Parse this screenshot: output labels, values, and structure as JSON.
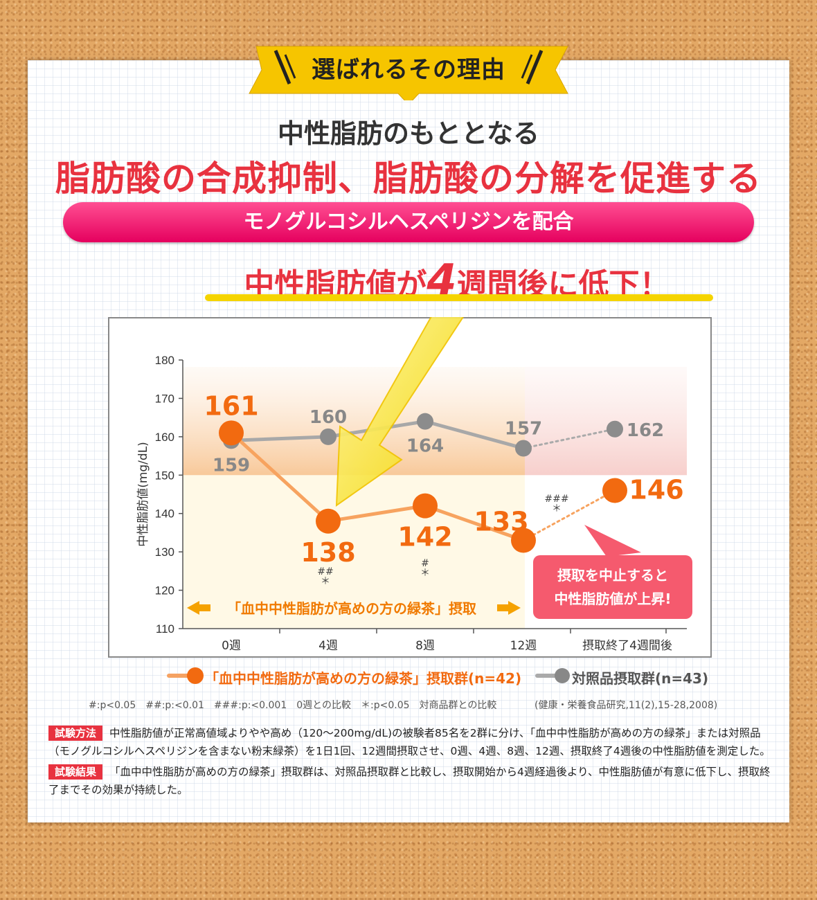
{
  "header": {
    "ribbon": "選ばれるその理由",
    "line1": "中性脂肪のもととなる",
    "line2": "脂肪酸の合成抑制、脂肪酸の分解を促進する",
    "pill": "モノグルコシルヘスペリジンを配合",
    "line3_pre": "中性脂肪値が",
    "line3_num": "4",
    "line3_post": "週間後に低下！"
  },
  "chart_data": {
    "type": "line",
    "ylabel": "中性脂肪値(mg/dL)",
    "ylim": [
      110,
      180
    ],
    "yticks": [
      110,
      120,
      130,
      140,
      150,
      160,
      170,
      180
    ],
    "categories": [
      "0週",
      "4週",
      "8週",
      "12週",
      "摂取終了4週間後"
    ],
    "series": [
      {
        "name": "「血中中性脂肪が高めの方の緑茶」摂取群(n=42)",
        "color": "#f26a10",
        "values": [
          161,
          138,
          142,
          133,
          146
        ],
        "labels": [
          "161",
          "138",
          "142",
          "133",
          "146"
        ],
        "sig": [
          "",
          "##\n＊",
          "#\n＊",
          "###\n＊",
          ""
        ]
      },
      {
        "name": "対照品摂取群(n=43)",
        "color": "#999999",
        "values": [
          159,
          160,
          164,
          157,
          162
        ],
        "labels": [
          "159",
          "160",
          "164",
          "157",
          "162"
        ]
      }
    ],
    "arrow_label": "「血中中性脂肪が高めの方の緑茶」摂取",
    "callout": [
      "摂取を中止すると",
      "中性脂肪値が上昇!"
    ]
  },
  "notes": {
    "significance": "#:p<0.05　##:p:<0.01　###:p:<0.001　0週との比較　＊:p<0.05　対商品群との比較",
    "source": "(健康・栄養食品研究,11(2),15-28,2008)"
  },
  "method": {
    "tag1": "試験方法",
    "text1": "中性脂肪値が正常高値域よりやや高め（120～200mg/dL)の被験者85名を2群に分け、「血中中性脂肪が高めの方の緑茶」または対照品（モノグルコシルヘスペリジンを含まない粉末緑茶）を1日1回、12週間摂取させ、0週、4週、8週、12週、摂取終了4週後の中性脂肪値を測定した。",
    "tag2": "試験結果",
    "text2": "「血中中性脂肪が高めの方の緑茶」摂取群は、対照品摂取群と比較し、摂取開始から4週経過後より、中性脂肪値が有意に低下し、摂取終了までその効果が持続した。"
  }
}
